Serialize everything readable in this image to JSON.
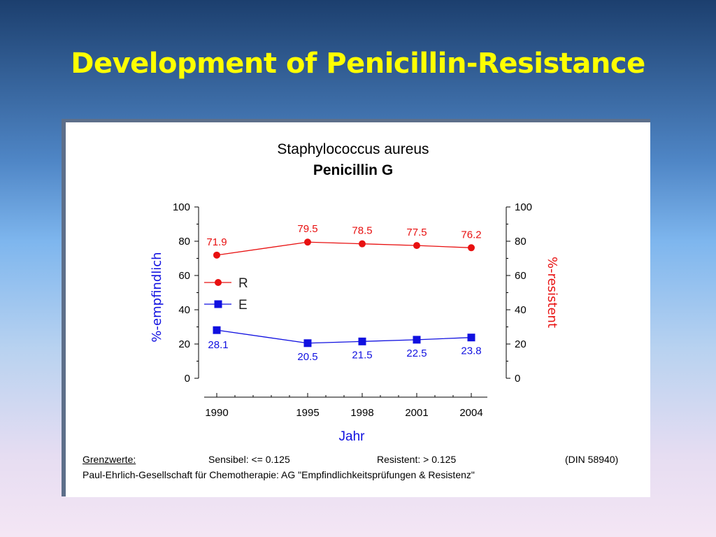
{
  "slide": {
    "title": "Development of Penicillin-Resistance"
  },
  "chart_data": {
    "type": "line",
    "title": "Staphylococcus aureus",
    "subtitle": "Penicillin G",
    "xlabel": "Jahr",
    "ylabel_left": "%-empfindlich",
    "ylabel_right": "%-resistent",
    "x": [
      1990,
      1995,
      1998,
      2001,
      2004
    ],
    "x_tick_labels": [
      "1990",
      "1995",
      "1998",
      "2001",
      "2004"
    ],
    "ylim": [
      0,
      100
    ],
    "y_ticks": [
      "0",
      "20",
      "40",
      "60",
      "80",
      "100"
    ],
    "grid": false,
    "legend_position": "left",
    "series": [
      {
        "name": "R",
        "color": "#e81010",
        "marker": "circle",
        "axis": "right",
        "values": [
          71.9,
          79.5,
          78.5,
          77.5,
          76.2
        ],
        "labels": [
          "71.9",
          "79.5",
          "78.5",
          "77.5",
          "76.2"
        ]
      },
      {
        "name": "E",
        "color": "#1010e0",
        "marker": "square",
        "axis": "left",
        "values": [
          28.1,
          20.5,
          21.5,
          22.5,
          23.8
        ],
        "labels": [
          "28.1",
          "20.5",
          "21.5",
          "22.5",
          "23.8"
        ]
      }
    ]
  },
  "footer": {
    "grenz_label": "Grenzwerte:",
    "sensibel": "Sensibel: <= 0.125",
    "resistent": "Resistent: > 0.125",
    "din": "(DIN 58940)",
    "source": "Paul-Ehrlich-Gesellschaft für Chemotherapie: AG \"Empfindlichkeitsprüfungen & Resistenz\""
  }
}
